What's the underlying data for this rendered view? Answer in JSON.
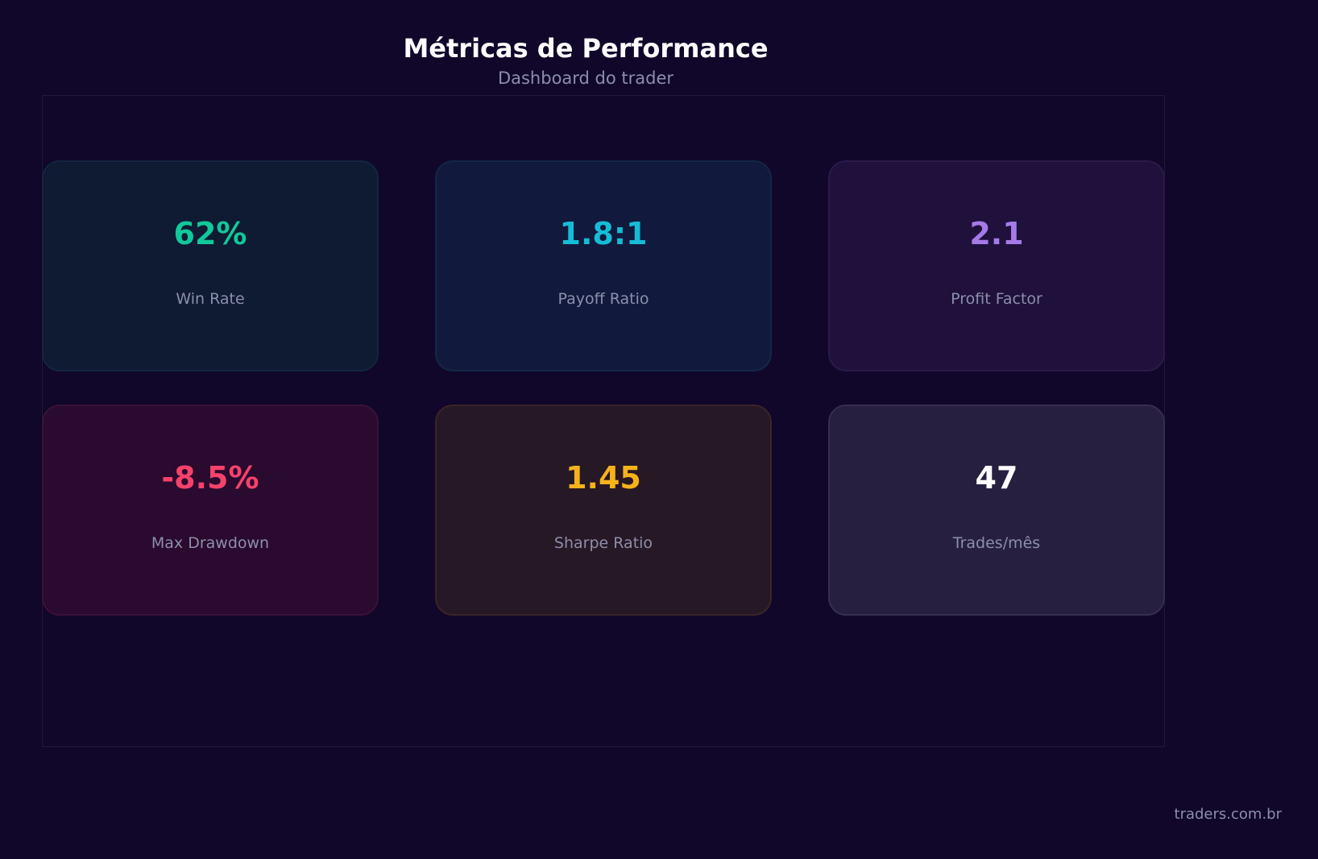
{
  "header": {
    "title": "Métricas de Performance",
    "subtitle": "Dashboard do trader"
  },
  "metrics": [
    {
      "value": "62%",
      "label": "Win Rate",
      "accent": "#10c99a",
      "bg": "#0f1a33",
      "border": "#132640"
    },
    {
      "value": "1.8:1",
      "label": "Payoff Ratio",
      "accent": "#16bcd6",
      "bg": "#111a3d",
      "border": "#152648"
    },
    {
      "value": "2.1",
      "label": "Profit Factor",
      "accent": "#a57ae8",
      "bg": "#1f113b",
      "border": "#2a1a4a"
    },
    {
      "value": "-8.5%",
      "label": "Max Drawdown",
      "accent": "#f5426a",
      "bg": "#2b0a2f",
      "border": "#3a1238"
    },
    {
      "value": "1.45",
      "label": "Sharpe Ratio",
      "accent": "#f6b21a",
      "bg": "#271826",
      "border": "#3a2426"
    },
    {
      "value": "47",
      "label": "Trades/mês",
      "accent": "#ffffff",
      "bg": "#271f3f",
      "border": "#362d52"
    }
  ],
  "footer": {
    "credit": "traders.com.br"
  }
}
